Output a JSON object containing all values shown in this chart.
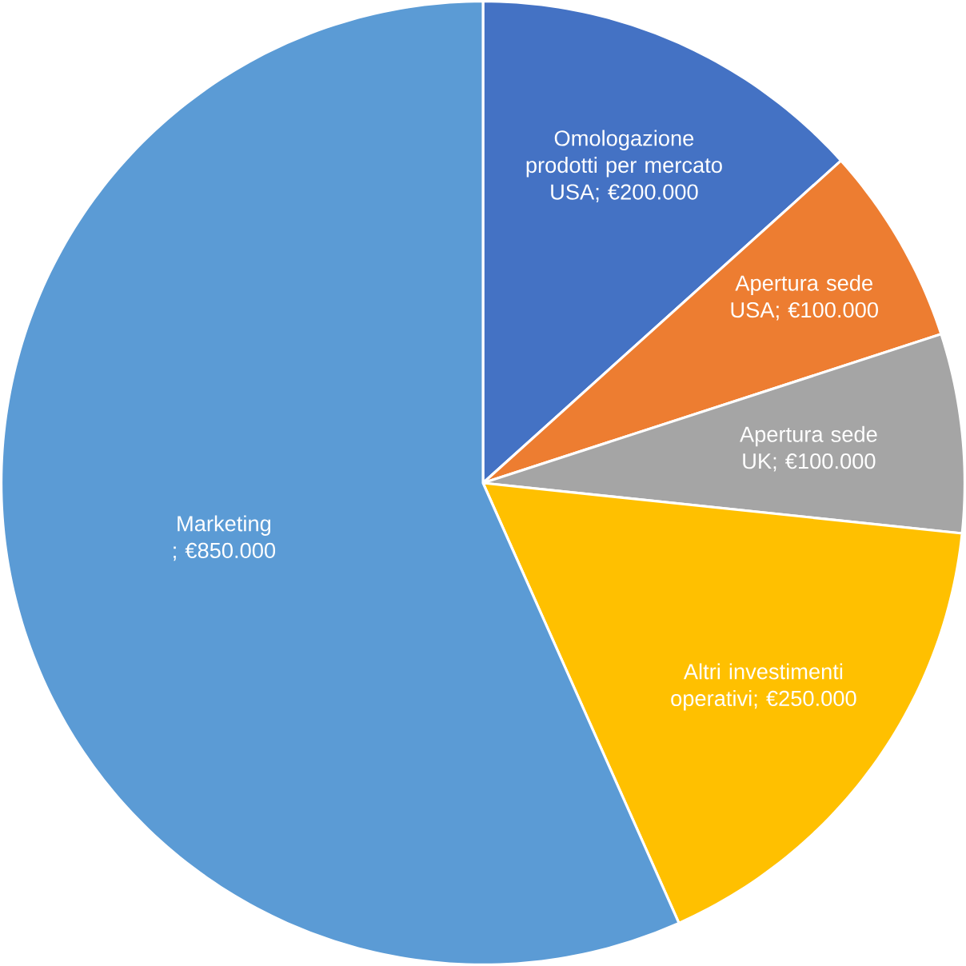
{
  "chart_data": {
    "type": "pie",
    "categories": [
      "Omologazione prodotti per mercato USA",
      "Apertura sede USA",
      "Apertura sede UK",
      "Altri investimenti operativi",
      "Marketing"
    ],
    "values": [
      200000,
      100000,
      100000,
      250000,
      850000
    ],
    "value_labels": [
      "; €200.000",
      "; €100.000",
      "; €100.000",
      "; €250.000",
      " ; €850.000"
    ],
    "colors": [
      "#4472c4",
      "#ed7d31",
      "#a5a5a5",
      "#ffc000",
      "#5b9bd5"
    ]
  }
}
